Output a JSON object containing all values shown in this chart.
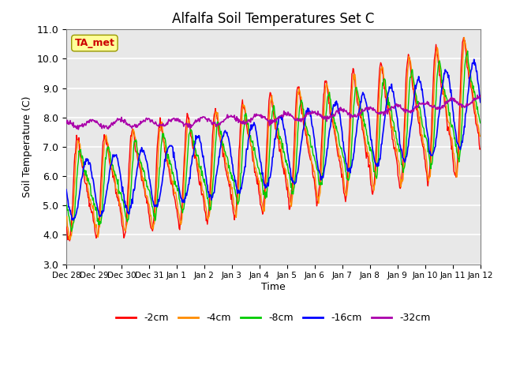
{
  "title": "Alfalfa Soil Temperatures Set C",
  "xlabel": "Time",
  "ylabel": "Soil Temperature (C)",
  "ylim": [
    3.0,
    11.0
  ],
  "yticks": [
    3.0,
    4.0,
    5.0,
    6.0,
    7.0,
    8.0,
    9.0,
    10.0,
    11.0
  ],
  "tick_labels": [
    "Dec 28",
    "Dec 29",
    "Dec 30",
    "Dec 31",
    "Jan 1",
    "Jan 2",
    "Jan 3",
    "Jan 4",
    "Jan 5",
    "Jan 6",
    "Jan 7",
    "Jan 8",
    "Jan 9",
    "Jan 10",
    "Jan 11",
    "Jan 12"
  ],
  "legend_labels": [
    "-2cm",
    "-4cm",
    "-8cm",
    "-16cm",
    "-32cm"
  ],
  "line_colors": [
    "#ff0000",
    "#ff8c00",
    "#00cc00",
    "#0000ff",
    "#aa00aa"
  ],
  "line_widths": [
    1.0,
    1.0,
    1.0,
    1.2,
    1.2
  ],
  "annotation_text": "TA_met",
  "annotation_color": "#cc0000",
  "annotation_bg": "#ffff99",
  "bg_color": "#e8e8e8",
  "n_points": 720,
  "n_days": 15
}
